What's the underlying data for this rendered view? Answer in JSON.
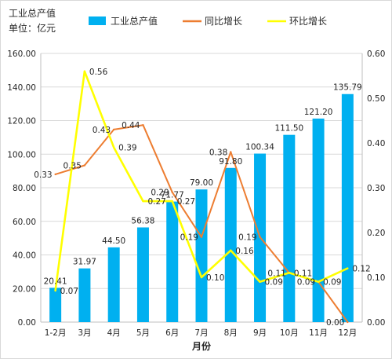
{
  "chart_data": {
    "type": "bar",
    "title_lines": [
      "工业总产值",
      "单位：亿元"
    ],
    "xlabel": "月份",
    "categories": [
      "1-2月",
      "3月",
      "4月",
      "5月",
      "6月",
      "7月",
      "8月",
      "9月",
      "10月",
      "11月",
      "12月"
    ],
    "ylim_left": [
      0,
      160
    ],
    "yticks_left": [
      "0.00",
      "20.00",
      "40.00",
      "60.00",
      "80.00",
      "100.00",
      "120.00",
      "140.00",
      "160.00"
    ],
    "ylim_right": [
      0,
      0.6
    ],
    "yticks_right": [
      "0.00",
      "0.10",
      "0.20",
      "0.30",
      "0.40",
      "0.50",
      "0.60"
    ],
    "grid": true,
    "legend_position": "top",
    "series": [
      {
        "name": "工业总产值",
        "kind": "bar",
        "axis": "left",
        "color": "#00b0f0",
        "values": [
          20.41,
          31.97,
          44.5,
          56.38,
          71.77,
          79.0,
          91.8,
          100.34,
          111.5,
          121.2,
          135.79
        ],
        "labels": [
          "20.41",
          "31.97",
          "44.50",
          "56.38",
          "71.77",
          "79.00",
          "91.80",
          "100.34",
          "111.50",
          "121.20",
          "135.79"
        ]
      },
      {
        "name": "同比增长",
        "kind": "line",
        "axis": "right",
        "color": "#ed7d31",
        "values": [
          0.33,
          0.35,
          0.43,
          0.44,
          0.29,
          0.19,
          0.38,
          0.19,
          0.11,
          0.09,
          0.0
        ],
        "labels": [
          "0.33",
          "0.35",
          "0.43",
          "0.44",
          "0.29",
          "0.19",
          "0.38",
          "0.19",
          "0.11",
          "0.09",
          "0.00"
        ]
      },
      {
        "name": "环比增长",
        "kind": "line",
        "axis": "right",
        "color": "#ffff00",
        "values": [
          0.07,
          0.56,
          0.39,
          0.27,
          0.27,
          0.1,
          0.16,
          0.09,
          0.11,
          0.09,
          0.12
        ],
        "labels": [
          "0.07",
          "0.56",
          "0.39",
          "0.27",
          "0.27",
          "0.10",
          "0.16",
          "0.09",
          "0.11",
          "0.09",
          "0.12"
        ]
      }
    ]
  }
}
